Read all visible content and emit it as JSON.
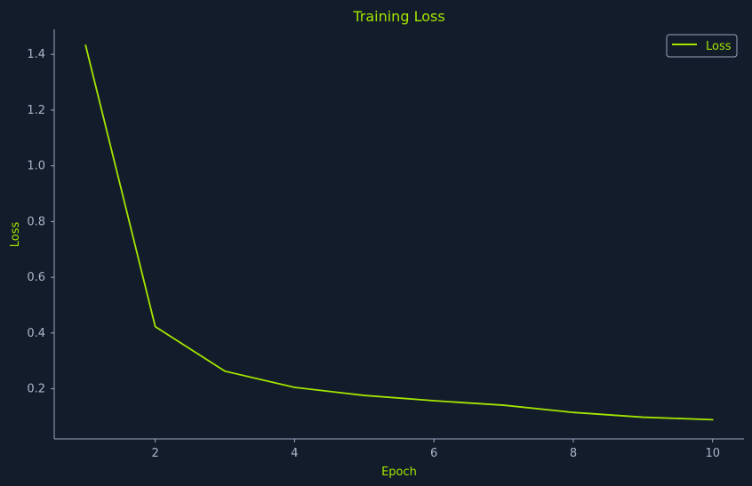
{
  "chart_data": {
    "type": "line",
    "title": "Training Loss",
    "xlabel": "Epoch",
    "ylabel": "Loss",
    "x": [
      1,
      2,
      3,
      4,
      5,
      6,
      7,
      8,
      9,
      10
    ],
    "series": [
      {
        "name": "Loss",
        "values": [
          1.433,
          0.423,
          0.263,
          0.205,
          0.176,
          0.157,
          0.141,
          0.115,
          0.098,
          0.089
        ]
      }
    ],
    "xlim": [
      0.55,
      10.45
    ],
    "ylim": [
      0.02,
      1.49
    ],
    "xticks": [
      2,
      4,
      6,
      8,
      10
    ],
    "yticks": [
      0.2,
      0.4,
      0.6,
      0.8,
      1.0,
      1.2,
      1.4
    ],
    "ytick_labels": [
      "0.2",
      "0.4",
      "0.6",
      "0.8",
      "1.0",
      "1.2",
      "1.4"
    ],
    "grid": false,
    "legend_position": "top-right",
    "colors": {
      "background": "#131c2b",
      "accent": "#a3e600",
      "axis": "#9aa8bd",
      "tick_text": "#aab6c8",
      "legend_border": "#9aa8bd"
    }
  }
}
